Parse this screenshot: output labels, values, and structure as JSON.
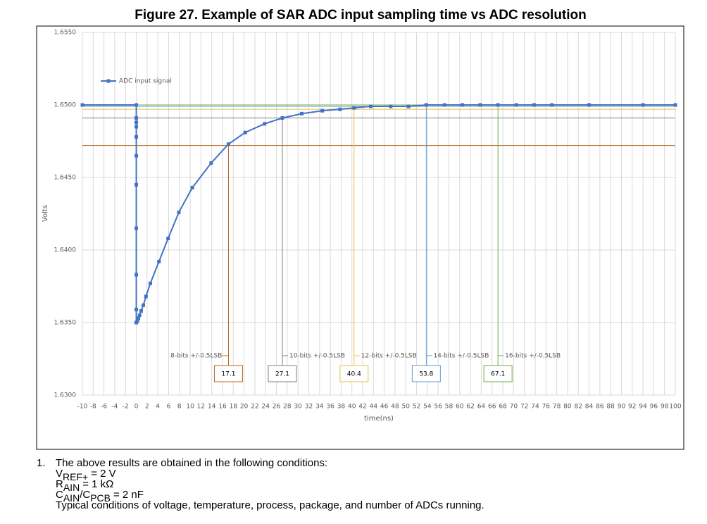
{
  "chart_data": {
    "type": "line",
    "title": "Figure 27. Example of SAR ADC input sampling time vs ADC resolution",
    "x_label": "time(ns)",
    "y_label": "Volts",
    "xlim": [
      -10,
      100
    ],
    "xticks": [
      -10,
      -8,
      -6,
      -4,
      -2,
      0,
      2,
      4,
      6,
      8,
      10,
      12,
      14,
      16,
      18,
      20,
      22,
      24,
      26,
      28,
      30,
      32,
      34,
      36,
      38,
      40,
      42,
      44,
      46,
      48,
      50,
      52,
      54,
      56,
      58,
      60,
      62,
      64,
      66,
      68,
      70,
      72,
      74,
      76,
      78,
      80,
      82,
      84,
      86,
      88,
      90,
      92,
      94,
      96,
      98,
      100
    ],
    "ylim": [
      1.63,
      1.655
    ],
    "yticks": [
      {
        "value": 1.63,
        "label": "1.6300"
      },
      {
        "value": 1.635,
        "label": "1.6350"
      },
      {
        "value": 1.64,
        "label": "1.6400"
      },
      {
        "value": 1.645,
        "label": "1.6450"
      },
      {
        "value": 1.65,
        "label": "1.6500"
      },
      {
        "value": 1.655,
        "label": "1.6550"
      }
    ],
    "grid": true,
    "legend": "top-left",
    "series": [
      {
        "name": "ADC input signal",
        "color": "#4472c4",
        "x": [
          -10,
          0,
          0,
          0,
          0,
          0,
          0,
          0,
          0,
          0,
          0,
          0,
          0.2,
          0.4,
          0.6,
          0.9,
          1.3,
          1.8,
          2.6,
          4.2,
          5.9,
          7.9,
          10.4,
          13.9,
          17.1,
          20.2,
          23.8,
          27.1,
          30.7,
          34.5,
          37.8,
          40.4,
          43.5,
          47.2,
          50.5,
          53.8,
          57.2,
          60.5,
          63.8,
          67.1,
          70.5,
          73.8,
          77.1,
          84,
          94,
          100
        ],
        "values": [
          1.65,
          1.65,
          1.6491,
          1.6488,
          1.6485,
          1.6478,
          1.6465,
          1.6445,
          1.6415,
          1.6383,
          1.6359,
          1.635,
          1.6351,
          1.6353,
          1.6355,
          1.6358,
          1.6362,
          1.6368,
          1.6377,
          1.6392,
          1.6408,
          1.6426,
          1.6443,
          1.646,
          1.6473,
          1.6481,
          1.6487,
          1.6491,
          1.6494,
          1.6496,
          1.6497,
          1.6498,
          1.6499,
          1.6499,
          1.6499,
          1.65,
          1.65,
          1.65,
          1.65,
          1.65,
          1.65,
          1.65,
          1.65,
          1.65,
          1.65,
          1.65
        ]
      }
    ],
    "thresholds": [
      {
        "name": "8-bits +/-0.5LSB",
        "color": "#b5651d",
        "y": 1.6472,
        "x": 17.1
      },
      {
        "name": "10-bits +/-0.5LSB",
        "color": "#7f7f7f",
        "y": 1.6491,
        "x": 27.1
      },
      {
        "name": "12-bits +/-0.5LSB",
        "color": "#e8c14a",
        "y": 1.6497,
        "x": 40.4
      },
      {
        "name": "14-bits +/-0.5LSB",
        "color": "#5b9bd5",
        "y": 1.6499,
        "x": 53.8
      },
      {
        "name": "16-bits +/-0.5LSB",
        "color": "#70ad47",
        "y": 1.65,
        "x": 67.1
      }
    ]
  },
  "notes": [
    {
      "number": "1.",
      "lines": [
        [
          {
            "text": "The above results are obtained in the following conditions:"
          }
        ],
        [
          {
            "text": "V"
          },
          {
            "sub": "REF+"
          },
          {
            "eq": "= 2 V"
          }
        ],
        [
          {
            "text": "R"
          },
          {
            "sub": "AIN"
          },
          {
            "eq": "= 1 kΩ"
          }
        ],
        [
          {
            "text": "C"
          },
          {
            "sub": "AIN"
          },
          {
            "text": "/C"
          },
          {
            "sub": "PCB"
          },
          {
            "eq": "= 2 nF"
          }
        ],
        [
          {
            "text": "Typical conditions of voltage, temperature, process, package, and number of ADCs running."
          }
        ]
      ]
    }
  ]
}
